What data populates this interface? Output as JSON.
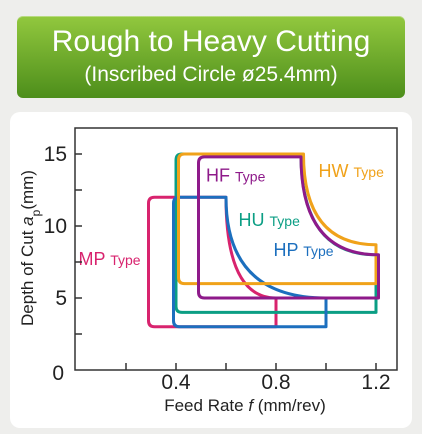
{
  "banner": {
    "title": "Rough to Heavy Cutting",
    "subtitle": "(Inscribed Circle ø25.4mm)"
  },
  "chart_data": {
    "type": "area",
    "title": "Rough to Heavy Cutting",
    "subtitle": "(Inscribed Circle ø25.4mm)",
    "xlabel": {
      "prefix": "Feed Rate ",
      "var": "f",
      "suffix": " (mm/rev)"
    },
    "ylabel": {
      "prefix": "Depth of Cut ",
      "var": "a",
      "sub": "p",
      "suffix": "(mm)"
    },
    "xlim": [
      0,
      1.3
    ],
    "ylim": [
      0,
      17.5
    ],
    "xticks": [
      "0.4",
      "0.8",
      "1.2"
    ],
    "yticks": [
      "5",
      "10",
      "15"
    ],
    "origin_label": "0",
    "grid": false,
    "series": [
      {
        "name": "MP",
        "suffix": "Type",
        "color": "#d8236e",
        "x_range": [
          0.29,
          0.8
        ],
        "y_range": [
          3,
          12
        ],
        "corner": "top-right",
        "curve": {
          "x_end": 0.6,
          "y_start": 5
        },
        "label_pos": [
          0.01,
          7.3
        ]
      },
      {
        "name": "HU",
        "suffix": "Type",
        "color": "#0b9e84",
        "x_range": [
          0.4,
          1.2
        ],
        "y_range": [
          4,
          15
        ],
        "corner": "top-right",
        "curve": {
          "x_end": 0.9,
          "y_start": 8
        },
        "label_pos": [
          0.65,
          10
        ]
      },
      {
        "name": "HP",
        "suffix": "Type",
        "color": "#1c6fbe",
        "x_range": [
          0.39,
          1.0
        ],
        "y_range": [
          3,
          12
        ],
        "corner": "top-right",
        "curve": {
          "x_end": 0.6,
          "y_start": 5
        },
        "label_pos": [
          0.79,
          7.9
        ]
      },
      {
        "name": "HW",
        "suffix": "Type",
        "color": "#f0a21a",
        "x_range": [
          0.41,
          1.2
        ],
        "y_range": [
          6,
          15
        ],
        "corner": "top-right",
        "curve": {
          "x_end": 0.91,
          "y_start": 8.7
        },
        "label_pos": [
          0.97,
          13.4
        ]
      },
      {
        "name": "HF",
        "suffix": "Type",
        "color": "#8e1a8a",
        "x_range": [
          0.49,
          1.21
        ],
        "y_range": [
          5,
          14.8
        ],
        "corner": "top-right",
        "curve": {
          "x_end": 0.9,
          "y_start": 8
        },
        "label_pos": [
          0.52,
          13.1
        ]
      }
    ]
  }
}
